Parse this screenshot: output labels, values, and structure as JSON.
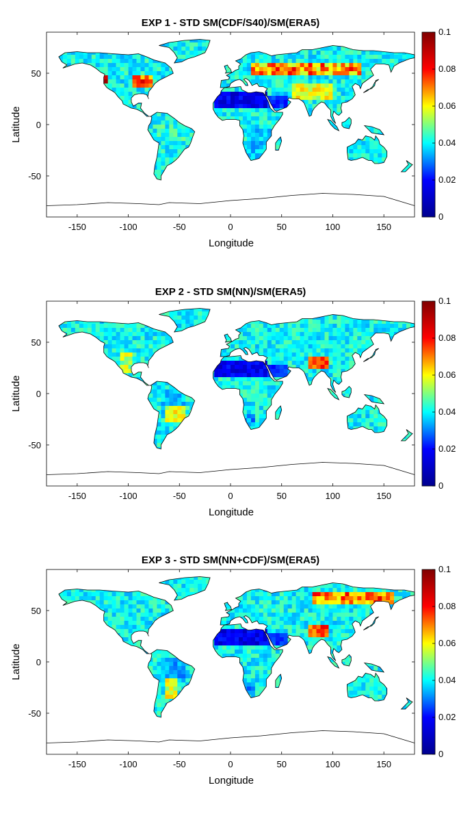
{
  "panels": [
    {
      "title": "EXP 1 - STD SM(CDF/S40)/SM(ERA5)",
      "xlabel": "Longitude",
      "ylabel": "Latitude",
      "pattern": "exp1"
    },
    {
      "title": "EXP 2 - STD SM(NN)/SM(ERA5)",
      "xlabel": "Longitude",
      "ylabel": "Latitude",
      "pattern": "exp2"
    },
    {
      "title": "EXP 3 - STD SM(NN+CDF)/SM(ERA5)",
      "xlabel": "Longitude",
      "ylabel": "Latitude",
      "pattern": "exp3"
    }
  ],
  "map_axes": {
    "xlim": [
      -180,
      180
    ],
    "ylim": [
      -90,
      90
    ],
    "xticks": [
      -150,
      -100,
      -50,
      0,
      50,
      100,
      150
    ],
    "yticks": [
      50,
      0,
      -50
    ]
  },
  "colorbar": {
    "colormap": "jet",
    "limits": [
      0,
      0.1
    ],
    "ticks": [
      "0",
      "0.02",
      "0.04",
      "0.06",
      "0.08",
      "0.1"
    ],
    "colors": [
      "#00008f",
      "#0000ff",
      "#00ffff",
      "#ffff00",
      "#ff0000",
      "#800000"
    ]
  }
}
